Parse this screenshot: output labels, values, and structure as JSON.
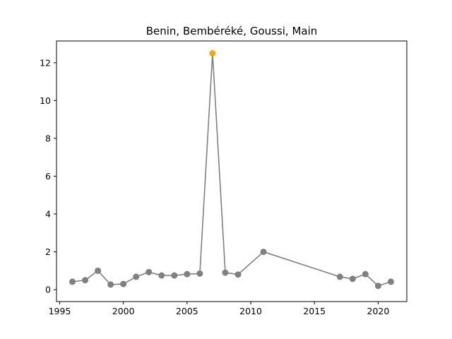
{
  "chart_data": {
    "type": "line",
    "title": "Benin, Bembéréké, Goussi, Main",
    "xlabel": "",
    "ylabel": "",
    "xlim": [
      1994.75,
      2022.25
    ],
    "ylim": [
      -0.63,
      13.15
    ],
    "xticks": [
      1995,
      2000,
      2005,
      2010,
      2015,
      2020
    ],
    "yticks": [
      0,
      2,
      4,
      6,
      8,
      10,
      12
    ],
    "grid": false,
    "colors": {
      "line": "#808080",
      "marker": "#808080",
      "highlight": "#ffa500"
    },
    "series": [
      {
        "points": [
          {
            "x": 1996,
            "y": 0.42
          },
          {
            "x": 1997,
            "y": 0.5
          },
          {
            "x": 1998,
            "y": 1.0
          },
          {
            "x": 1999,
            "y": 0.27
          },
          {
            "x": 2000,
            "y": 0.3
          },
          {
            "x": 2001,
            "y": 0.68
          },
          {
            "x": 2002,
            "y": 0.93
          },
          {
            "x": 2003,
            "y": 0.75
          },
          {
            "x": 2004,
            "y": 0.75
          },
          {
            "x": 2005,
            "y": 0.82
          },
          {
            "x": 2006,
            "y": 0.85
          },
          {
            "x": 2007,
            "y": 12.5,
            "highlight": true
          },
          {
            "x": 2008,
            "y": 0.9
          },
          {
            "x": 2009,
            "y": 0.8
          },
          {
            "x": 2011,
            "y": 2.0
          },
          {
            "x": 2017,
            "y": 0.68
          },
          {
            "x": 2018,
            "y": 0.57
          },
          {
            "x": 2019,
            "y": 0.82
          },
          {
            "x": 2020,
            "y": 0.2
          },
          {
            "x": 2021,
            "y": 0.42
          }
        ]
      }
    ]
  }
}
